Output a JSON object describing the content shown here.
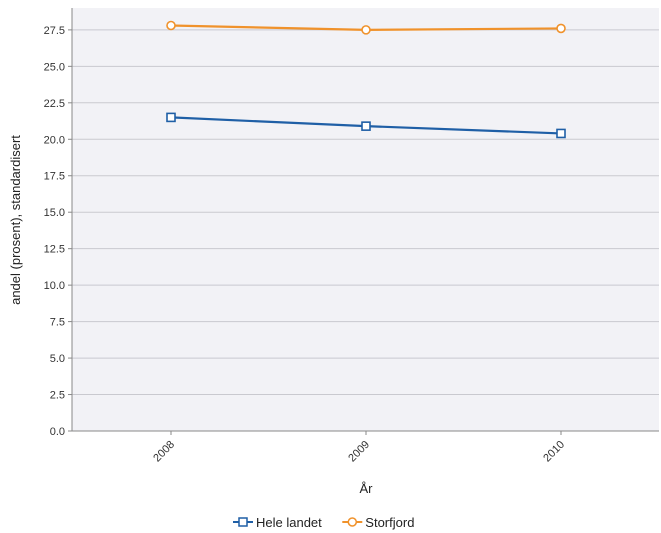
{
  "chart_data": {
    "type": "line",
    "title": "",
    "xlabel": "År",
    "ylabel": "andel (prosent), standardisert",
    "categories": [
      "2008",
      "2009",
      "2010"
    ],
    "ylim": [
      0,
      29
    ],
    "yticks": [
      "0.0",
      "2.5",
      "5.0",
      "7.5",
      "10.0",
      "12.5",
      "15.0",
      "17.5",
      "20.0",
      "22.5",
      "25.0",
      "27.5"
    ],
    "grid": true,
    "legend_position": "bottom",
    "series": [
      {
        "name": "Hele landet",
        "values": [
          21.5,
          20.9,
          20.4
        ],
        "color": "#1f5fa6",
        "marker": "square"
      },
      {
        "name": "Storfjord",
        "values": [
          27.8,
          27.5,
          27.6
        ],
        "color": "#f0922b",
        "marker": "circle"
      }
    ]
  }
}
